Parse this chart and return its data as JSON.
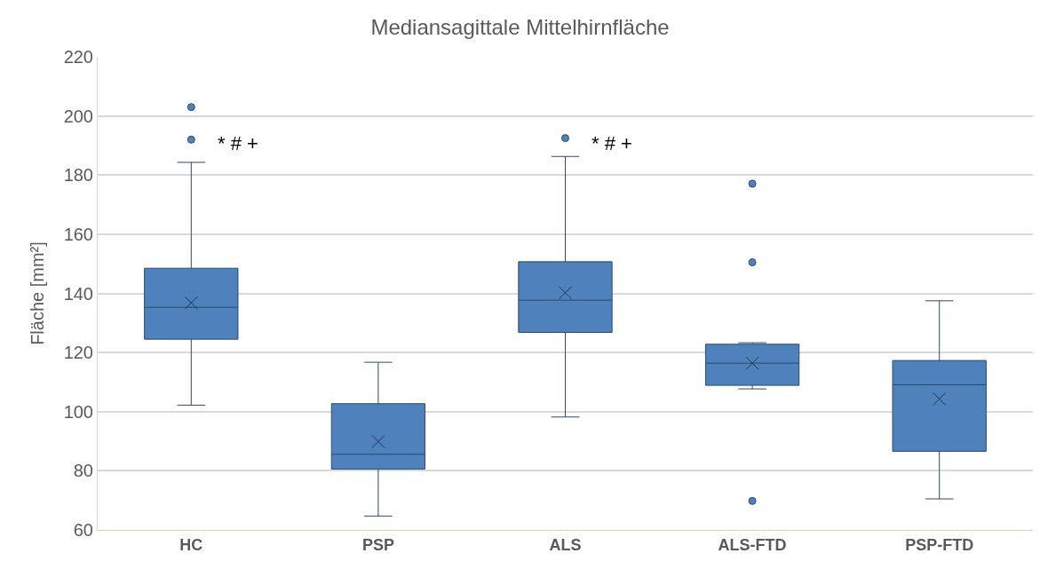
{
  "chart_data": {
    "type": "box",
    "title": "Mediansagittale Mittelhirnfläche",
    "ylabel": "Fläche [mm²]",
    "categories": [
      "HC",
      "PSP",
      "ALS",
      "ALS-FTD",
      "PSP-FTD"
    ],
    "color": "#4f81bd",
    "boxes": [
      {
        "low": 102.2,
        "q1": 124.5,
        "median": 135.3,
        "q3": 148.5,
        "high": 184.3,
        "mean": 136.8,
        "outliers": [
          203.0,
          192.0
        ]
      },
      {
        "low": 64.7,
        "q1": 80.6,
        "median": 85.6,
        "q3": 102.7,
        "high": 116.7,
        "mean": 89.9
      },
      {
        "low": 98.2,
        "q1": 126.8,
        "median": 137.7,
        "q3": 150.7,
        "high": 186.3,
        "mean": 140.2,
        "outliers": [
          192.5
        ]
      },
      {
        "low": 107.7,
        "q1": 108.9,
        "median": 116.4,
        "q3": 122.8,
        "high": 123.3,
        "mean": 116.4,
        "outliers": [
          177.1,
          150.5,
          69.8
        ]
      },
      {
        "low": 70.5,
        "q1": 86.6,
        "median": 109.1,
        "q3": 117.3,
        "high": 137.5,
        "mean": 104.3
      }
    ],
    "ylim": [
      60,
      220
    ],
    "yticks": [
      60,
      80,
      100,
      120,
      140,
      160,
      180,
      200,
      220
    ],
    "grid": "y",
    "annotations": [
      "* # +",
      "* # +"
    ]
  }
}
